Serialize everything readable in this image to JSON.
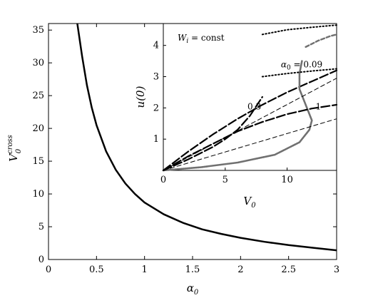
{
  "chart_data": [
    {
      "type": "line",
      "xlabel_sym": "α",
      "xlabel_sub": "0",
      "ylabel_sym": "V",
      "ylabel_sub": "0",
      "ylabel_sup": "cross",
      "xlim": [
        0,
        3
      ],
      "ylim": [
        0,
        36
      ],
      "xticks": [
        0,
        0.5,
        1,
        1.5,
        2,
        2.5,
        3
      ],
      "yticks": [
        0,
        5,
        10,
        15,
        20,
        25,
        30,
        35
      ],
      "xtick_labels": [
        "0",
        "0.5",
        "1",
        "1.5",
        "2",
        "2.5",
        "3"
      ],
      "ytick_labels": [
        "0",
        "5",
        "10",
        "15",
        "20",
        "25",
        "30",
        "35"
      ],
      "grid": false,
      "series": [
        {
          "style": "solid",
          "color": "#000000",
          "x": [
            0.3,
            0.35,
            0.4,
            0.45,
            0.5,
            0.6,
            0.7,
            0.8,
            0.9,
            1.0,
            1.2,
            1.4,
            1.6,
            1.8,
            2.0,
            2.25,
            2.5,
            2.75,
            3.0
          ],
          "y": [
            36.5,
            31.0,
            26.6,
            23.2,
            20.5,
            16.5,
            13.7,
            11.6,
            10.0,
            8.7,
            6.9,
            5.6,
            4.6,
            3.9,
            3.3,
            2.7,
            2.2,
            1.8,
            1.4
          ]
        }
      ]
    },
    {
      "type": "line",
      "annotation_sym": "W",
      "annotation_sub": "i",
      "annotation_rest": " = const",
      "xlabel_sym": "V",
      "xlabel_sub": "0",
      "ylabel": "u(0)",
      "xlim": [
        0,
        14
      ],
      "ylim": [
        0,
        4.7
      ],
      "xticks": [
        0,
        5,
        10
      ],
      "yticks": [
        1,
        2,
        3,
        4
      ],
      "xtick_labels": [
        "0",
        "5",
        "10"
      ],
      "ytick_labels": [
        "1",
        "2",
        "3",
        "4"
      ],
      "curve_labels": [
        {
          "text_sym": "α",
          "text_sub": "0",
          "text_rest": " = 0.09",
          "x": 9.5,
          "y": 3.3
        },
        {
          "text": "0.3",
          "x": 6.8,
          "y": 1.95
        },
        {
          "text": "1",
          "x": 12.3,
          "y": 1.95
        }
      ],
      "series": [
        {
          "label": "0.09",
          "style": "dashed-branch",
          "color": "#000000",
          "x": [
            0,
            2,
            4,
            6,
            8,
            10,
            12,
            14
          ],
          "y": [
            0,
            0.6,
            1.15,
            1.65,
            2.1,
            2.5,
            2.85,
            3.2
          ]
        },
        {
          "label": "0.09",
          "style": "grey-fold",
          "color": "#707070",
          "x": [
            0,
            3,
            6,
            9,
            11,
            11.8,
            12.0,
            11.5,
            11.0,
            11.0,
            11.2
          ],
          "y": [
            0,
            0.1,
            0.25,
            0.5,
            0.9,
            1.3,
            1.6,
            2.1,
            2.6,
            3.1,
            3.5
          ]
        },
        {
          "label": "0.3",
          "style": "dashed-branch",
          "color": "#000000",
          "x": [
            0,
            2,
            4,
            5,
            6,
            7,
            8
          ],
          "y": [
            0,
            0.35,
            0.75,
            1.0,
            1.3,
            1.75,
            2.35
          ]
        },
        {
          "label": "1",
          "style": "dashed-branch",
          "color": "#000000",
          "x": [
            0,
            2,
            4,
            6,
            8,
            10,
            12,
            14
          ],
          "y": [
            0,
            0.45,
            0.85,
            1.25,
            1.55,
            1.8,
            1.98,
            2.1
          ]
        },
        {
          "label": "",
          "style": "dashed",
          "color": "#000000",
          "x": [
            0,
            14
          ],
          "y": [
            0,
            2.95
          ]
        },
        {
          "label": "",
          "style": "dashed",
          "color": "#000000",
          "x": [
            0,
            14
          ],
          "y": [
            0,
            1.65
          ]
        },
        {
          "label": "",
          "style": "dotted",
          "color": "#000000",
          "x": [
            8,
            10,
            12,
            14
          ],
          "y": [
            3.0,
            3.1,
            3.18,
            3.25
          ]
        },
        {
          "label": "",
          "style": "dotted",
          "color": "#000000",
          "x": [
            8,
            10,
            12,
            14
          ],
          "y": [
            4.35,
            4.5,
            4.58,
            4.65
          ]
        },
        {
          "label": "",
          "style": "grey-dashed",
          "color": "#707070",
          "x": [
            11.5,
            12.5,
            13.5,
            14
          ],
          "y": [
            3.95,
            4.15,
            4.3,
            4.35
          ]
        }
      ]
    }
  ]
}
